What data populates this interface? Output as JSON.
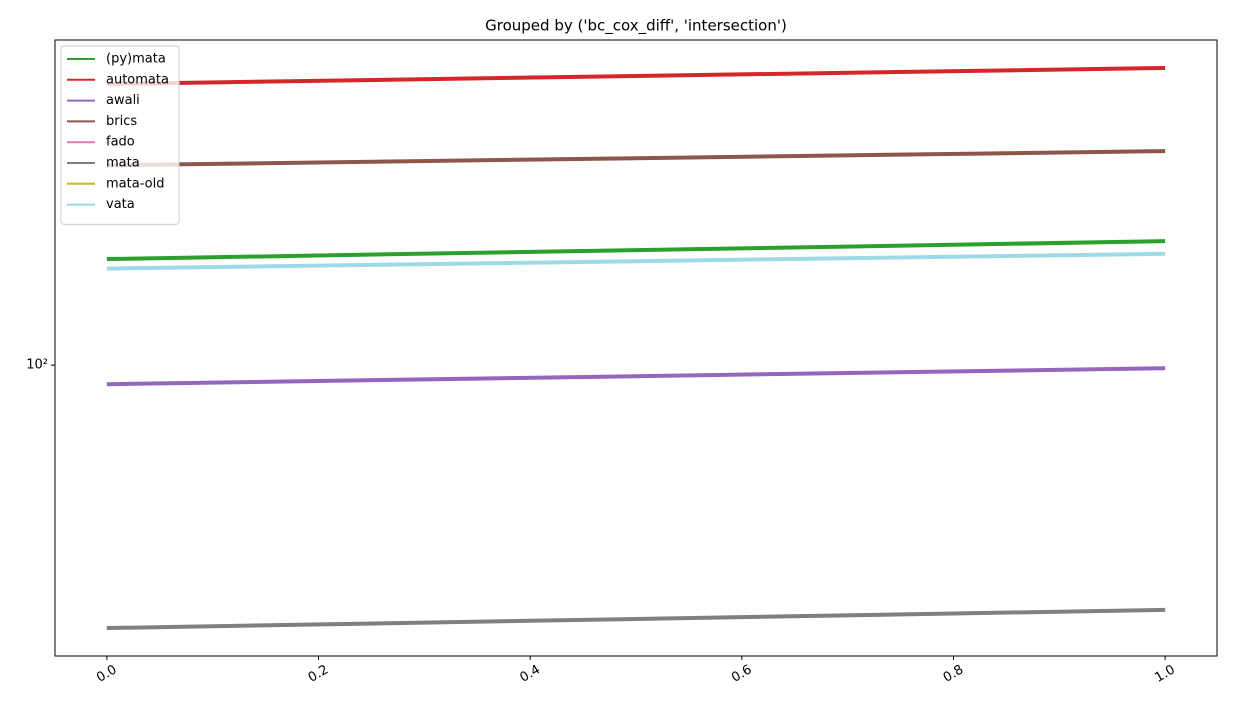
{
  "chart_data": {
    "type": "line",
    "title": "Grouped by ('bc_cox_diff', 'intersection')",
    "x": [
      0,
      1
    ],
    "series": [
      {
        "name": "(py)mata",
        "color": "#2ca02c",
        "values": [
          163,
          177
        ]
      },
      {
        "name": "automata",
        "color": "#d62728",
        "values": [
          365,
          393
        ]
      },
      {
        "name": "awali",
        "color": "#9467bd",
        "values": [
          91.6,
          98.6
        ]
      },
      {
        "name": "brics",
        "color": "#8c564b",
        "values": [
          251,
          268
        ]
      },
      {
        "name": "fado",
        "color": "#e377c2",
        "values": [
          null,
          null
        ]
      },
      {
        "name": "mata",
        "color": "#7f7f7f",
        "values": [
          29.8,
          32.4
        ]
      },
      {
        "name": "mata-old",
        "color": "#bcbd22",
        "values": [
          null,
          null
        ]
      },
      {
        "name": "vata",
        "color": "#9edae5",
        "values": [
          156,
          167
        ]
      }
    ],
    "xlim": [
      -0.049,
      1.049
    ],
    "xticks": [
      {
        "value": 0,
        "label": "0.0"
      },
      0.2,
      0.4,
      0.6,
      0.8,
      {
        "value": 1,
        "label": "1.0"
      }
    ],
    "ylim": [
      26.2,
      447
    ],
    "yticks": [
      {
        "value": 100,
        "label": "10²"
      }
    ],
    "log_y": true,
    "grid": false,
    "legend": "upper left"
  }
}
